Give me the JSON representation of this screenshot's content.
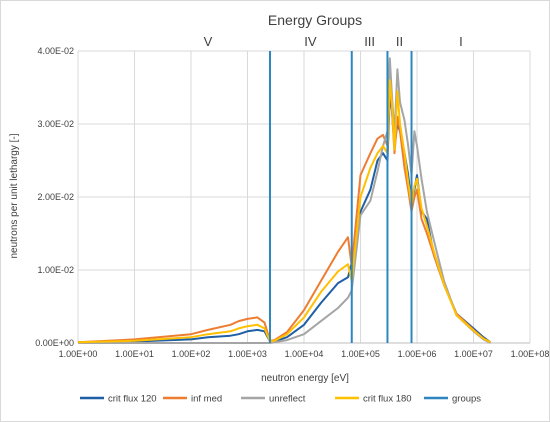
{
  "chart_data": {
    "type": "line",
    "title": "Energy Groups",
    "xlabel": "neutron energy [eV]",
    "ylabel": "neutrons per unit lethargy [-]",
    "x_scale": "log",
    "xlim": [
      1,
      100000000
    ],
    "ylim": [
      0,
      0.04
    ],
    "x_ticks": [
      "1.00E+00",
      "1.00E+01",
      "1.00E+02",
      "1.00E+03",
      "1.00E+04",
      "1.00E+05",
      "1.00E+06",
      "1.00E+07",
      "1.00E+08"
    ],
    "y_ticks": [
      "0.00E+00",
      "1.00E-02",
      "2.00E-02",
      "3.00E-02",
      "4.00E-02"
    ],
    "grid": "vertical and horizontal major gridlines",
    "legend_position": "bottom",
    "group_boundaries_ev": [
      2500,
      70000,
      300000,
      800000
    ],
    "group_labels": [
      {
        "label": "V",
        "x": 200
      },
      {
        "label": "IV",
        "x": 13000
      },
      {
        "label": "III",
        "x": 145000
      },
      {
        "label": "II",
        "x": 490000
      },
      {
        "label": "I",
        "x": 6000000
      }
    ],
    "series": [
      {
        "name": "crit flux 120",
        "color": "#1f5fa6",
        "x": [
          1,
          10,
          100,
          200,
          500,
          700,
          1000,
          1500,
          2000,
          2500,
          3000,
          5000,
          10000,
          20000,
          40000,
          60000,
          70000,
          100000,
          150000,
          200000,
          250000,
          300000,
          330000,
          360000,
          400000,
          450000,
          500000,
          600000,
          700000,
          800000,
          900000,
          1000000,
          1200000,
          1500000,
          2000000,
          3000000,
          5000000,
          10000000,
          15000000,
          20000000
        ],
        "y": [
          0.0001,
          0.0002,
          0.0005,
          0.0008,
          0.001,
          0.0012,
          0.0016,
          0.0018,
          0.0016,
          0.0002,
          0.0002,
          0.0008,
          0.0025,
          0.0055,
          0.0082,
          0.009,
          0.011,
          0.018,
          0.021,
          0.025,
          0.026,
          0.025,
          0.034,
          0.032,
          0.027,
          0.03,
          0.029,
          0.026,
          0.023,
          0.019,
          0.021,
          0.023,
          0.018,
          0.017,
          0.012,
          0.008,
          0.004,
          0.002,
          0.0008,
          0.0001
        ]
      },
      {
        "name": "inf med",
        "color": "#ed7d31",
        "x": [
          1,
          10,
          100,
          200,
          500,
          700,
          1000,
          1500,
          2000,
          2500,
          3000,
          5000,
          10000,
          20000,
          40000,
          60000,
          70000,
          100000,
          150000,
          200000,
          250000,
          300000,
          330000,
          360000,
          400000,
          450000,
          500000,
          600000,
          700000,
          800000,
          900000,
          1000000,
          1200000,
          1500000,
          2000000,
          3000000,
          5000000,
          10000000,
          15000000,
          20000000
        ],
        "y": [
          0.0001,
          0.0005,
          0.0012,
          0.0018,
          0.0025,
          0.003,
          0.0033,
          0.0035,
          0.0028,
          0.0003,
          0.0004,
          0.0015,
          0.0045,
          0.0085,
          0.0125,
          0.0145,
          0.0105,
          0.023,
          0.026,
          0.028,
          0.0285,
          0.027,
          0.036,
          0.032,
          0.026,
          0.031,
          0.029,
          0.024,
          0.021,
          0.018,
          0.02,
          0.021,
          0.017,
          0.015,
          0.012,
          0.008,
          0.004,
          0.0018,
          0.0006,
          0.0001
        ]
      },
      {
        "name": "unreflect",
        "color": "#a5a5a5",
        "x": [
          1,
          10,
          100,
          1000,
          2000,
          2500,
          3000,
          5000,
          10000,
          20000,
          40000,
          60000,
          70000,
          100000,
          150000,
          200000,
          250000,
          300000,
          330000,
          360000,
          400000,
          450000,
          500000,
          600000,
          700000,
          800000,
          900000,
          1000000,
          1200000,
          1500000,
          2000000,
          3000000,
          5000000,
          10000000,
          15000000,
          20000000
        ],
        "y": [
          0,
          0,
          0,
          0,
          0,
          0,
          0.0001,
          0.0004,
          0.0012,
          0.003,
          0.0048,
          0.0062,
          0.0072,
          0.0175,
          0.0195,
          0.0235,
          0.027,
          0.029,
          0.039,
          0.034,
          0.0285,
          0.0375,
          0.033,
          0.0305,
          0.027,
          0.023,
          0.029,
          0.027,
          0.0225,
          0.018,
          0.014,
          0.0085,
          0.0038,
          0.0016,
          0.0005,
          0
        ]
      },
      {
        "name": "crit flux 180",
        "color": "#ffc000",
        "x": [
          1,
          10,
          100,
          200,
          500,
          700,
          1000,
          1500,
          2000,
          2500,
          3000,
          5000,
          10000,
          20000,
          40000,
          60000,
          70000,
          100000,
          150000,
          200000,
          250000,
          300000,
          330000,
          360000,
          400000,
          450000,
          500000,
          600000,
          700000,
          800000,
          900000,
          1000000,
          1200000,
          1500000,
          2000000,
          3000000,
          5000000,
          10000000,
          15000000,
          20000000
        ],
        "y": [
          0.0001,
          0.0003,
          0.0008,
          0.0012,
          0.0016,
          0.002,
          0.0023,
          0.0025,
          0.002,
          0.0002,
          0.0003,
          0.0012,
          0.0035,
          0.007,
          0.0098,
          0.0108,
          0.0085,
          0.02,
          0.024,
          0.026,
          0.027,
          0.026,
          0.036,
          0.033,
          0.0265,
          0.0345,
          0.03,
          0.026,
          0.022,
          0.019,
          0.0215,
          0.0225,
          0.0185,
          0.016,
          0.0125,
          0.008,
          0.0038,
          0.0017,
          0.0006,
          0.0001
        ]
      }
    ],
    "groups_series": {
      "name": "groups",
      "color": "#2e86c1"
    }
  }
}
